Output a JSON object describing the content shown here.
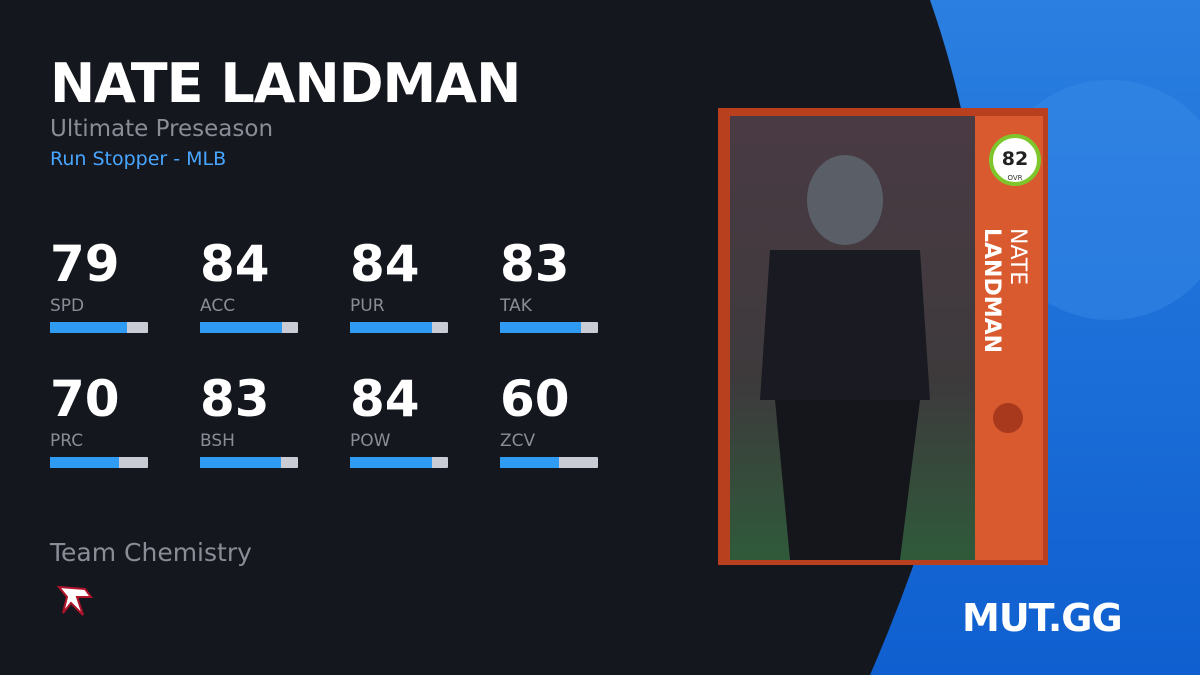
{
  "header": {
    "name": "NATE LANDMAN",
    "program": "Ultimate Preseason",
    "archetype": "Run Stopper - MLB"
  },
  "stats": [
    {
      "label": "SPD",
      "value": 79
    },
    {
      "label": "ACC",
      "value": 84
    },
    {
      "label": "PUR",
      "value": 84
    },
    {
      "label": "TAK",
      "value": 83
    },
    {
      "label": "PRC",
      "value": 70
    },
    {
      "label": "BSH",
      "value": 83
    },
    {
      "label": "POW",
      "value": 84
    },
    {
      "label": "ZCV",
      "value": 60
    }
  ],
  "chemistry": {
    "title": "Team Chemistry"
  },
  "card": {
    "ovr": 82,
    "ovr_label": "OVR",
    "first_name": "NATE",
    "last_name": "LANDMAN"
  },
  "brand": "MUT.GG"
}
